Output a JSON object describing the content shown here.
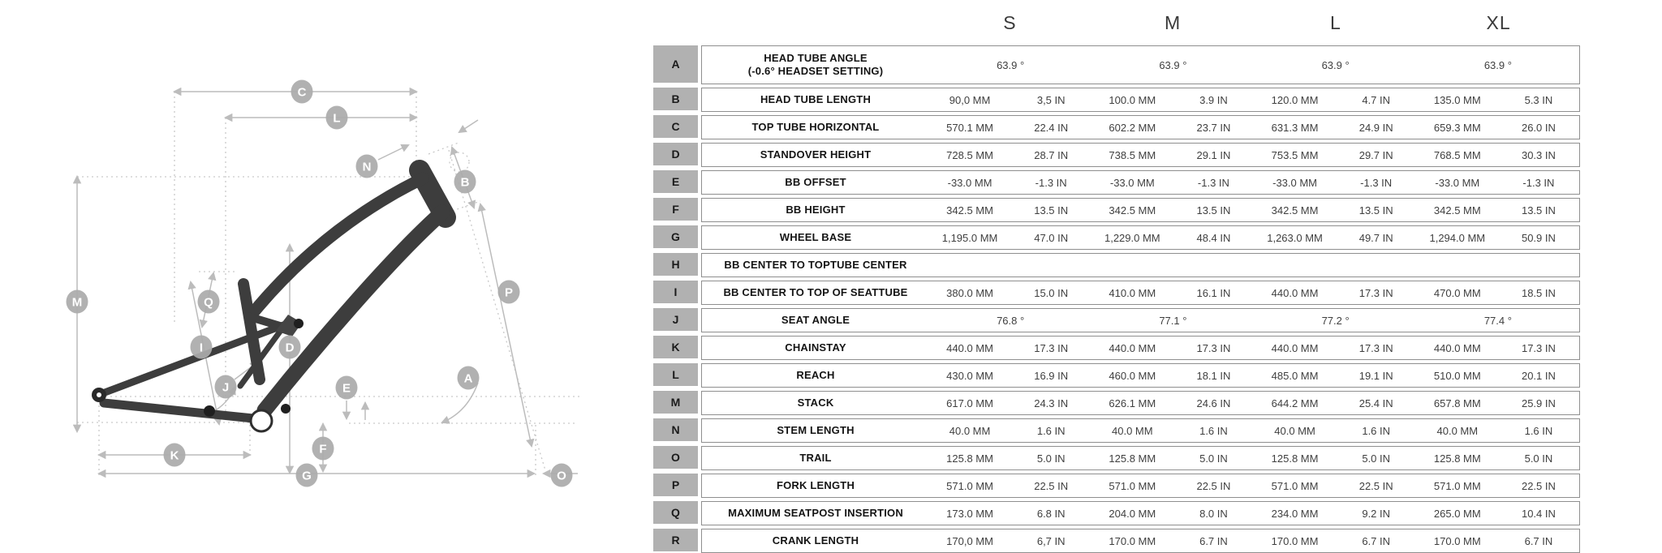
{
  "sizes": [
    "S",
    "M",
    "L",
    "XL"
  ],
  "table": {
    "rows": [
      {
        "letter": "A",
        "label": "HEAD TUBE ANGLE",
        "label2": "(-0.6° HEADSET SETTING)",
        "type": "deg",
        "values": [
          "63.9 °",
          "63.9 °",
          "63.9 °",
          "63.9 °"
        ]
      },
      {
        "letter": "B",
        "label": "HEAD TUBE LENGTH",
        "type": "mm-in",
        "values": [
          "90,0 MM",
          "3,5 IN",
          "100.0 MM",
          "3.9 IN",
          "120.0 MM",
          "4.7 IN",
          "135.0 MM",
          "5.3 IN"
        ]
      },
      {
        "letter": "C",
        "label": "TOP TUBE HORIZONTAL",
        "type": "mm-in",
        "values": [
          "570.1 MM",
          "22.4 IN",
          "602.2 MM",
          "23.7 IN",
          "631.3 MM",
          "24.9 IN",
          "659.3 MM",
          "26.0 IN"
        ]
      },
      {
        "letter": "D",
        "label": "STANDOVER HEIGHT",
        "type": "mm-in",
        "values": [
          "728.5 MM",
          "28.7 IN",
          "738.5 MM",
          "29.1 IN",
          "753.5 MM",
          "29.7 IN",
          "768.5 MM",
          "30.3 IN"
        ]
      },
      {
        "letter": "E",
        "label": "BB OFFSET",
        "type": "mm-in",
        "values": [
          "-33.0 MM",
          "-1.3 IN",
          "-33.0 MM",
          "-1.3 IN",
          "-33.0 MM",
          "-1.3 IN",
          "-33.0 MM",
          "-1.3 IN"
        ]
      },
      {
        "letter": "F",
        "label": "BB HEIGHT",
        "type": "mm-in",
        "values": [
          "342.5 MM",
          "13.5 IN",
          "342.5 MM",
          "13.5 IN",
          "342.5 MM",
          "13.5 IN",
          "342.5 MM",
          "13.5 IN"
        ]
      },
      {
        "letter": "G",
        "label": "WHEEL BASE",
        "type": "mm-in",
        "values": [
          "1,195.0 MM",
          "47.0 IN",
          "1,229.0 MM",
          "48.4 IN",
          "1,263.0 MM",
          "49.7 IN",
          "1,294.0 MM",
          "50.9 IN"
        ]
      },
      {
        "letter": "H",
        "label": "BB CENTER TO TOPTUBE CENTER",
        "type": "label-only",
        "values": []
      },
      {
        "letter": "I",
        "label": "BB CENTER TO TOP OF SEATTUBE",
        "type": "mm-in",
        "values": [
          "380.0 MM",
          "15.0 IN",
          "410.0 MM",
          "16.1 IN",
          "440.0 MM",
          "17.3 IN",
          "470.0 MM",
          "18.5 IN"
        ]
      },
      {
        "letter": "J",
        "label": "SEAT ANGLE",
        "type": "deg",
        "values": [
          "76.8 °",
          "77.1 °",
          "77.2 °",
          "77.4 °"
        ]
      },
      {
        "letter": "K",
        "label": "CHAINSTAY",
        "type": "mm-in",
        "values": [
          "440.0 MM",
          "17.3 IN",
          "440.0 MM",
          "17.3 IN",
          "440.0 MM",
          "17.3 IN",
          "440.0 MM",
          "17.3 IN"
        ]
      },
      {
        "letter": "L",
        "label": "REACH",
        "type": "mm-in",
        "values": [
          "430.0 MM",
          "16.9 IN",
          "460.0 MM",
          "18.1 IN",
          "485.0 MM",
          "19.1 IN",
          "510.0 MM",
          "20.1 IN"
        ]
      },
      {
        "letter": "M",
        "label": "STACK",
        "type": "mm-in",
        "values": [
          "617.0 MM",
          "24.3 IN",
          "626.1 MM",
          "24.6 IN",
          "644.2 MM",
          "25.4 IN",
          "657.8 MM",
          "25.9 IN"
        ]
      },
      {
        "letter": "N",
        "label": "STEM LENGTH",
        "type": "mm-in",
        "values": [
          "40.0 MM",
          "1.6 IN",
          "40.0 MM",
          "1.6 IN",
          "40.0 MM",
          "1.6 IN",
          "40.0 MM",
          "1.6 IN"
        ]
      },
      {
        "letter": "O",
        "label": "TRAIL",
        "type": "mm-in",
        "values": [
          "125.8 MM",
          "5.0 IN",
          "125.8 MM",
          "5.0 IN",
          "125.8 MM",
          "5.0 IN",
          "125.8 MM",
          "5.0 IN"
        ]
      },
      {
        "letter": "P",
        "label": "FORK LENGTH",
        "type": "mm-in",
        "values": [
          "571.0 MM",
          "22.5 IN",
          "571.0 MM",
          "22.5 IN",
          "571.0 MM",
          "22.5 IN",
          "571.0 MM",
          "22.5 IN"
        ]
      },
      {
        "letter": "Q",
        "label": "MAXIMUM SEATPOST INSERTION",
        "type": "mm-in",
        "values": [
          "173.0 MM",
          "6.8 IN",
          "204.0 MM",
          "8.0 IN",
          "234.0 MM",
          "9.2 IN",
          "265.0 MM",
          "10.4 IN"
        ]
      },
      {
        "letter": "R",
        "label": "CRANK LENGTH",
        "type": "mm-in",
        "values": [
          "170,0 MM",
          "6,7 IN",
          "170.0 MM",
          "6.7 IN",
          "170.0 MM",
          "6.7 IN",
          "170.0 MM",
          "6.7 IN"
        ]
      }
    ]
  },
  "diagram": {
    "labels": [
      "A",
      "B",
      "C",
      "D",
      "E",
      "F",
      "G",
      "I",
      "J",
      "K",
      "L",
      "M",
      "N",
      "O",
      "P",
      "Q"
    ]
  },
  "colors": {
    "frame": "#3d3d3d",
    "dimension_line": "#bcbcbc",
    "bubble": "#ababab",
    "letter_column": "#b1b1b1",
    "row_border": "#8f8f8f"
  }
}
